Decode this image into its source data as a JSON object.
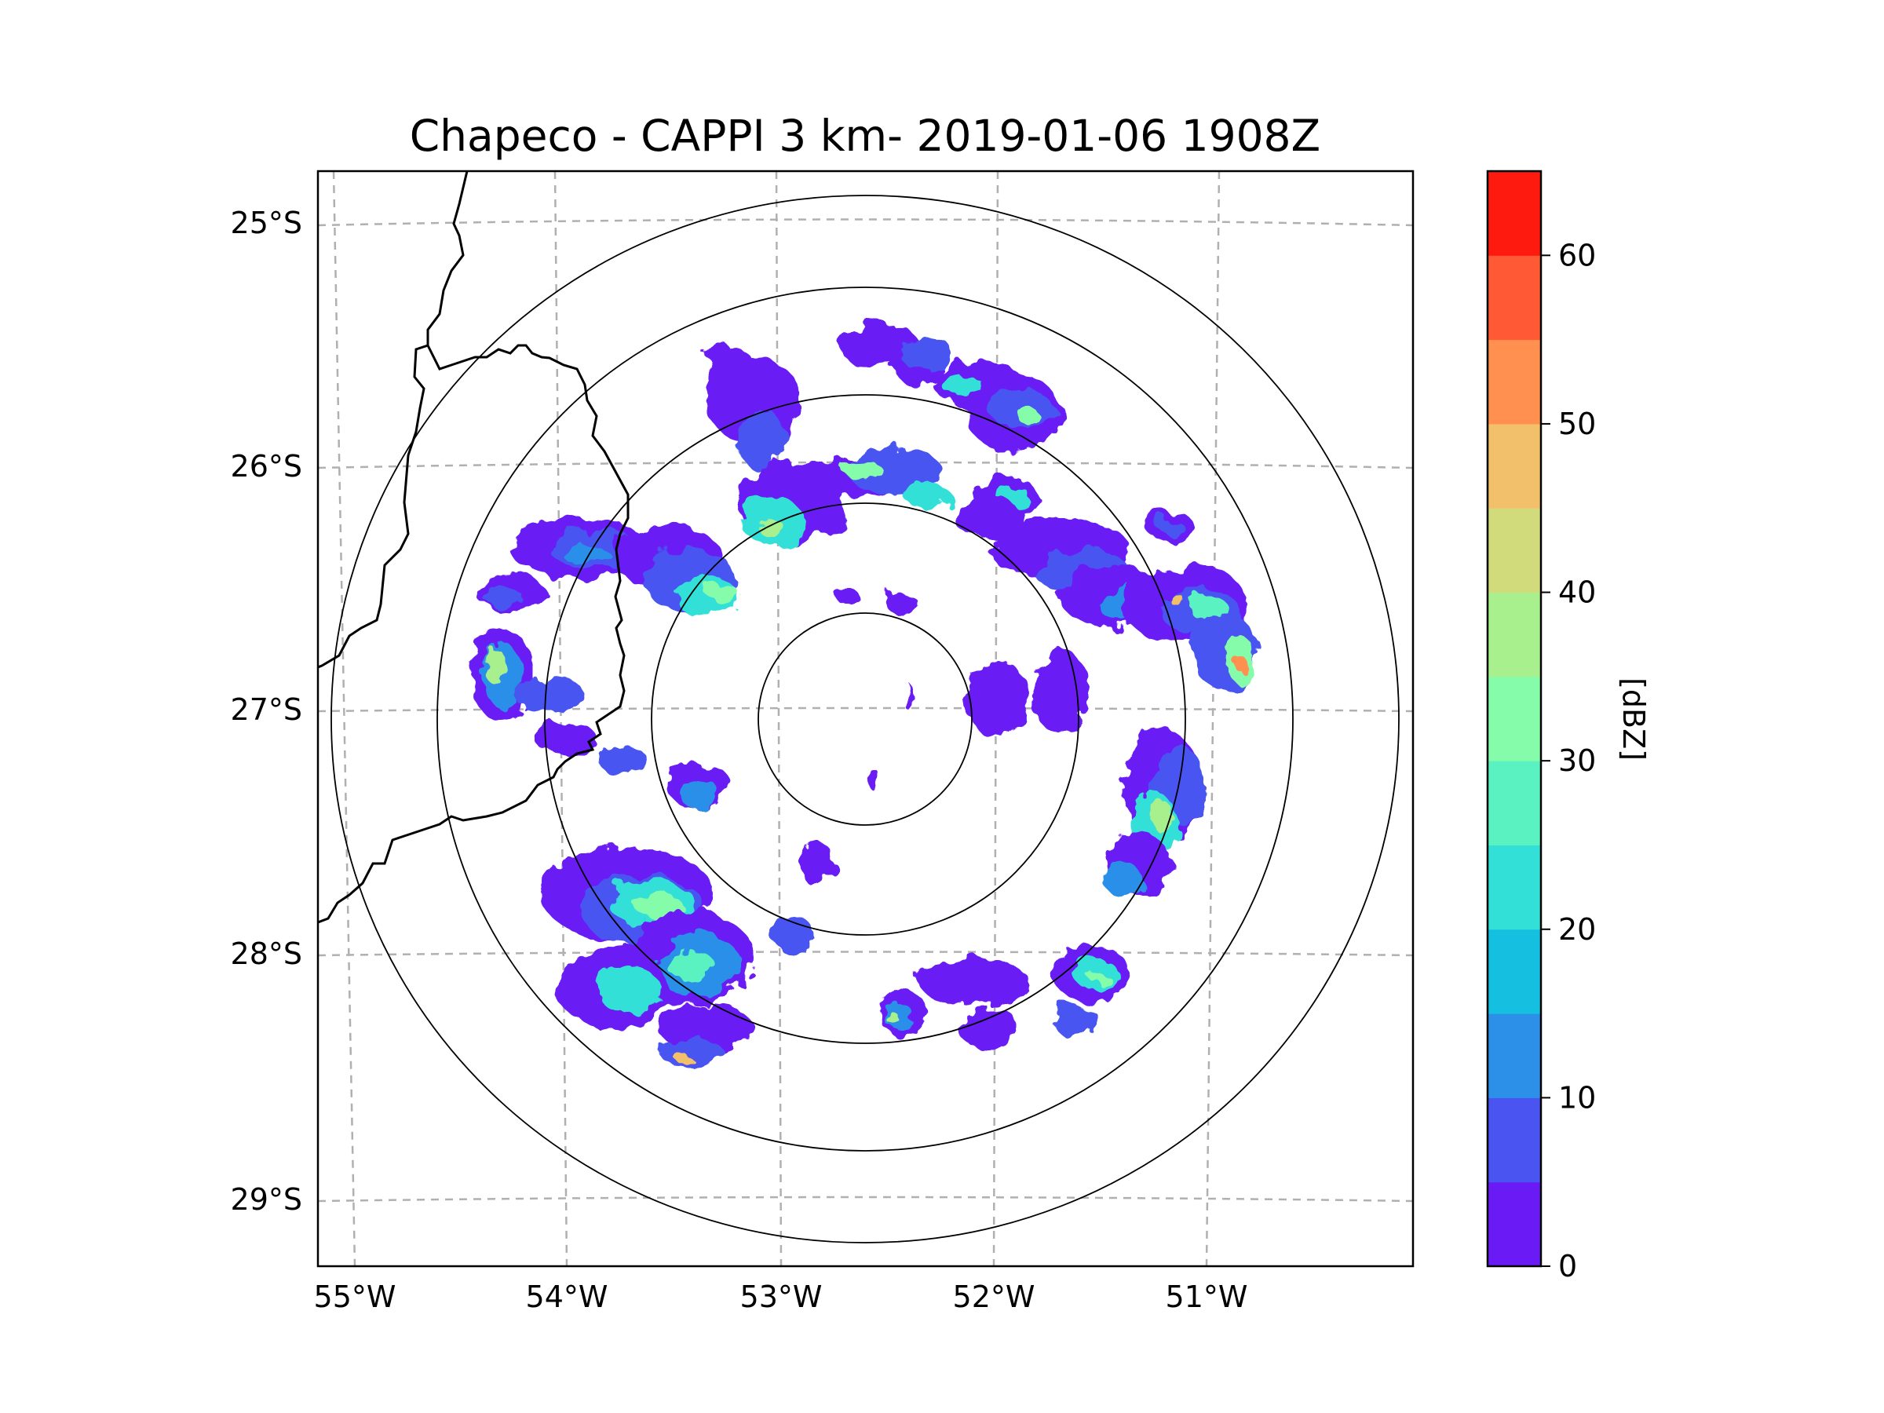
{
  "title": "Chapeco - CAPPI 3 km- 2019-01-06 1908Z",
  "map": {
    "lon_range": [
      -55.18,
      -50.08
    ],
    "lat_range": [
      -29.3,
      -24.8
    ],
    "radar_center": {
      "lon": -52.62,
      "lat": -27.03
    },
    "range_ring_count": 5,
    "lon_gridlines": [
      -55,
      -54,
      -53,
      -52,
      -51
    ],
    "lat_gridlines": [
      -25,
      -26,
      -27,
      -28,
      -29
    ],
    "lon_tick_labels": [
      "55°W",
      "54°W",
      "53°W",
      "52°W",
      "51°W"
    ],
    "lat_tick_labels": [
      "25°S",
      "26°S",
      "27°S",
      "28°S",
      "29°S"
    ]
  },
  "colorbar": {
    "label": "[dBZ]",
    "min": 0,
    "max": 65,
    "ticks": [
      "0",
      "10",
      "20",
      "30",
      "40",
      "50",
      "60"
    ],
    "levels": [
      {
        "from": 0,
        "to": 5,
        "color": "#6a1bf5"
      },
      {
        "from": 5,
        "to": 10,
        "color": "#4a54f0"
      },
      {
        "from": 10,
        "to": 15,
        "color": "#2c8fe8"
      },
      {
        "from": 15,
        "to": 20,
        "color": "#14bfe0"
      },
      {
        "from": 20,
        "to": 25,
        "color": "#33e0d8"
      },
      {
        "from": 25,
        "to": 30,
        "color": "#5af2c0"
      },
      {
        "from": 30,
        "to": 35,
        "color": "#85fcaa"
      },
      {
        "from": 35,
        "to": 40,
        "color": "#a8ef8e"
      },
      {
        "from": 40,
        "to": 45,
        "color": "#d2db7c"
      },
      {
        "from": 45,
        "to": 50,
        "color": "#f2c06a"
      },
      {
        "from": 50,
        "to": 55,
        "color": "#ff9050"
      },
      {
        "from": 55,
        "to": 60,
        "color": "#ff5a35"
      },
      {
        "from": 60,
        "to": 65,
        "color": "#ff1a10"
      }
    ]
  },
  "colors": {
    "gridline": "#b0b0b0",
    "border": "#000000",
    "ring": "#000000"
  }
}
